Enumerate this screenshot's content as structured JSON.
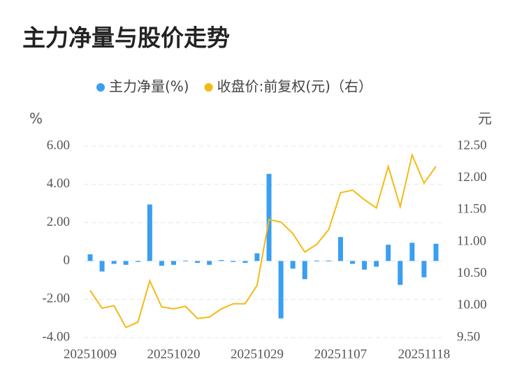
{
  "chart_data": {
    "type": "bar_line",
    "title": "主力净量与股价走势",
    "y_axis_label": "%",
    "y2_axis_label": "元",
    "categories": [
      "20251009",
      null,
      null,
      null,
      null,
      null,
      null,
      "20251020",
      null,
      null,
      null,
      null,
      null,
      null,
      "20251029",
      null,
      null,
      null,
      null,
      null,
      null,
      "20251107",
      null,
      null,
      null,
      null,
      null,
      null,
      "20251118",
      null
    ],
    "series": [
      {
        "name": "主力净量(%)",
        "color": "#3a9ff0",
        "kind": "bar",
        "values": [
          0.35,
          -0.55,
          -0.15,
          -0.2,
          -0.05,
          2.95,
          -0.25,
          -0.2,
          0.02,
          -0.1,
          -0.2,
          0.05,
          -0.05,
          -0.1,
          0.4,
          4.55,
          -3.0,
          -0.4,
          -0.95,
          0.02,
          0.02,
          1.25,
          -0.15,
          -0.45,
          -0.3,
          0.85,
          -1.25,
          0.95,
          -0.85,
          0.9
        ]
      },
      {
        "name": "收盘价:前复权(元)（右）",
        "color": "#f5b915",
        "kind": "line",
        "axis": "y2",
        "values": [
          10.24,
          9.96,
          10.0,
          9.66,
          9.74,
          10.39,
          9.98,
          9.95,
          9.99,
          9.8,
          9.82,
          9.95,
          10.03,
          10.03,
          10.32,
          11.35,
          11.31,
          11.13,
          10.84,
          10.96,
          11.19,
          11.77,
          11.81,
          11.66,
          11.53,
          12.18,
          11.55,
          12.36,
          11.92,
          12.18
        ]
      }
    ],
    "ylim": [
      -4,
      6
    ],
    "yticks": [
      {
        "value": -4,
        "label": "-4.00"
      },
      {
        "value": -2,
        "label": "-2.00"
      },
      0,
      {
        "value": 2,
        "label": "2.00"
      },
      {
        "value": 4,
        "label": "4.00"
      },
      {
        "value": 6,
        "label": "6.00"
      }
    ],
    "y2lim": [
      9.5,
      12.5
    ],
    "y2ticks": [
      {
        "value": 9.5,
        "label": "9.50"
      },
      {
        "value": 10,
        "label": "10.00"
      },
      {
        "value": 10.5,
        "label": "10.50"
      },
      {
        "value": 11,
        "label": "11.00"
      },
      {
        "value": 11.5,
        "label": "11.50"
      },
      {
        "value": 12,
        "label": "12.00"
      },
      {
        "value": 12.5,
        "label": "12.50"
      }
    ],
    "grid": true
  }
}
